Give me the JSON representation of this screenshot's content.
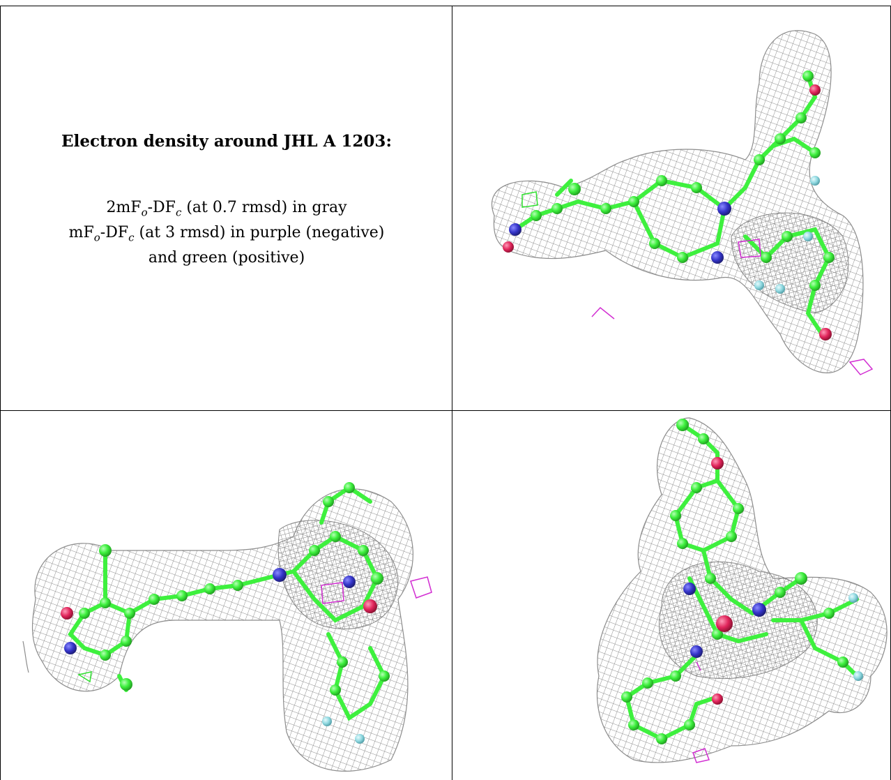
{
  "caption": {
    "title": "Electron density around JHL A 1203:",
    "line1": {
      "pre": "2mF",
      "sub1": "o",
      "mid": "-DF",
      "sub2": "c",
      "post": " (at 0.7 rmsd) in gray"
    },
    "line2": {
      "pre": "mF",
      "sub1": "o",
      "mid": "-DF",
      "sub2": "c",
      "post": " (at 3 rmsd) in purple (negative)"
    },
    "line3": "and green (positive)"
  },
  "colors": {
    "mesh_gray": "#9a9a9a",
    "carbon_green": "#3ef03e",
    "nitrogen_blue": "#3434c8",
    "oxygen_red": "#e0245a",
    "fluorine_cyan": "#8fd8e0",
    "negative_purple": "#d22ed2",
    "positive_green": "#2ee02e"
  },
  "panels": [
    {
      "view": "top-right",
      "icon": "electron-density-map-view-1"
    },
    {
      "view": "bottom-left",
      "icon": "electron-density-map-view-2"
    },
    {
      "view": "bottom-right",
      "icon": "electron-density-map-view-3"
    }
  ]
}
